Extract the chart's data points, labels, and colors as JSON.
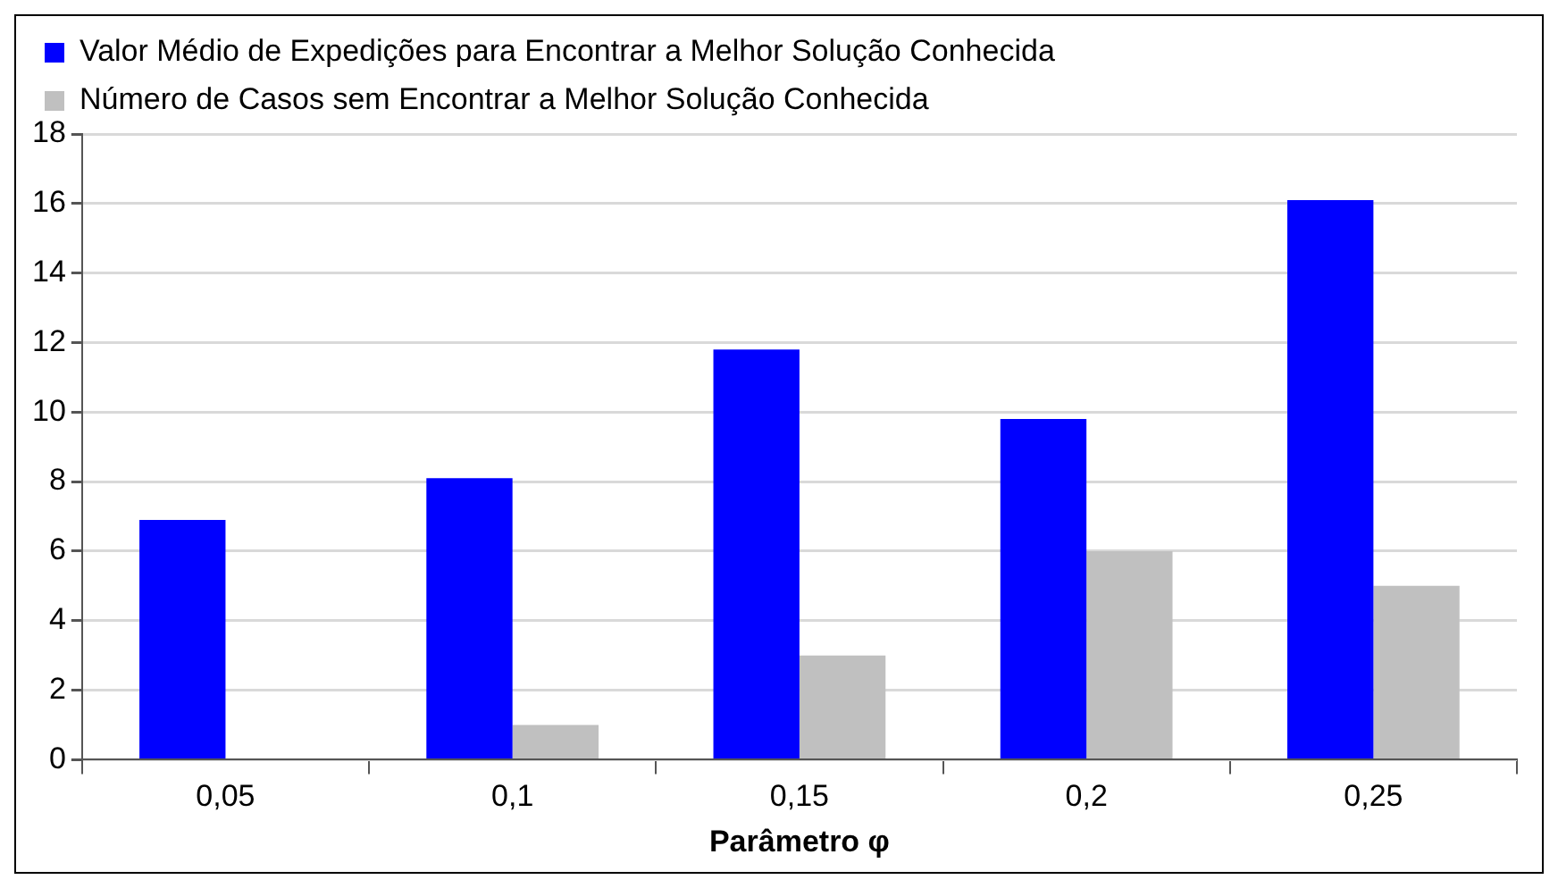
{
  "chart_data": {
    "type": "bar",
    "xlabel": "Parâmetro φ",
    "categories": [
      "0,05",
      "0,1",
      "0,15",
      "0,2",
      "0,25"
    ],
    "series": [
      {
        "name": "Valor Médio de Expedições para Encontrar a Melhor Solução Conhecida",
        "color": "#0000ff",
        "values": [
          6.9,
          8.1,
          11.8,
          9.8,
          16.1
        ]
      },
      {
        "name": "Número de Casos sem Encontrar a Melhor Solução Conhecida",
        "color": "#c0c0c0",
        "values": [
          0,
          1,
          3,
          6,
          5
        ]
      }
    ],
    "ylim": [
      0,
      18
    ],
    "yticks": [
      0,
      2,
      4,
      6,
      8,
      10,
      12,
      14,
      16,
      18
    ],
    "grid": "y",
    "legend": "top left"
  }
}
